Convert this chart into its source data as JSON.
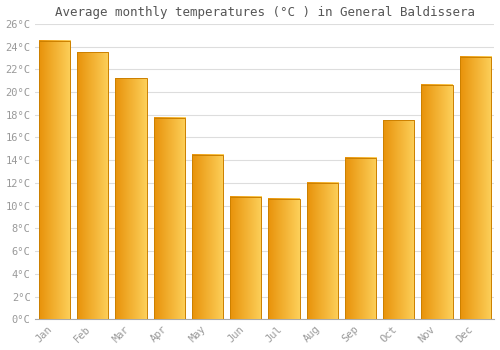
{
  "title": "Average monthly temperatures (°C ) in General Baldissera",
  "months": [
    "Jan",
    "Feb",
    "Mar",
    "Apr",
    "May",
    "Jun",
    "Jul",
    "Aug",
    "Sep",
    "Oct",
    "Nov",
    "Dec"
  ],
  "values": [
    24.5,
    23.5,
    21.2,
    17.7,
    14.5,
    10.8,
    10.6,
    12.0,
    14.2,
    17.5,
    20.6,
    23.1
  ],
  "bar_color_left": "#E8920A",
  "bar_color_right": "#FDD05A",
  "bar_edge_color": "#CC8000",
  "ylim": [
    0,
    26
  ],
  "yticks": [
    0,
    2,
    4,
    6,
    8,
    10,
    12,
    14,
    16,
    18,
    20,
    22,
    24,
    26
  ],
  "ytick_labels": [
    "0°C",
    "2°C",
    "4°C",
    "6°C",
    "8°C",
    "10°C",
    "12°C",
    "14°C",
    "16°C",
    "18°C",
    "20°C",
    "22°C",
    "24°C",
    "26°C"
  ],
  "title_fontsize": 9,
  "tick_fontsize": 7.5,
  "background_color": "#ffffff",
  "grid_color": "#dddddd",
  "font_family": "monospace",
  "bar_width": 0.82
}
